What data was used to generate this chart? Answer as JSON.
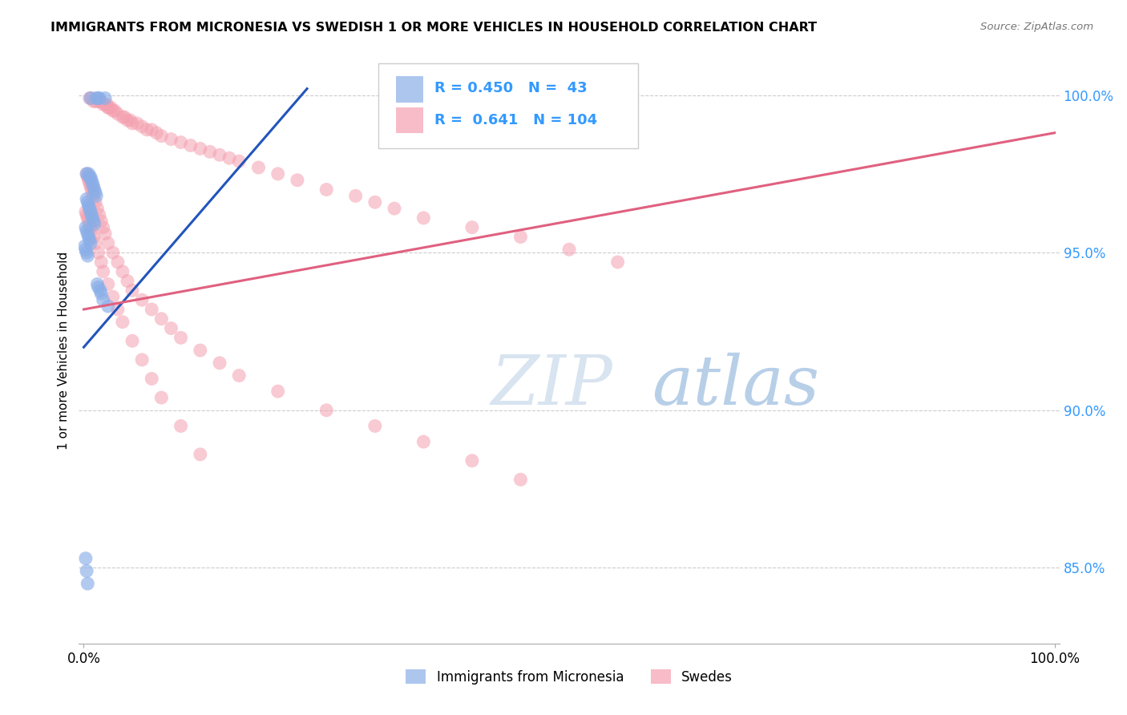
{
  "title": "IMMIGRANTS FROM MICRONESIA VS SWEDISH 1 OR MORE VEHICLES IN HOUSEHOLD CORRELATION CHART",
  "source": "Source: ZipAtlas.com",
  "ylabel": "1 or more Vehicles in Household",
  "ytick_labels": [
    "85.0%",
    "90.0%",
    "95.0%",
    "100.0%"
  ],
  "ytick_values": [
    0.85,
    0.9,
    0.95,
    1.0
  ],
  "xtick_labels": [
    "0.0%",
    "100.0%"
  ],
  "xtick_values": [
    0.0,
    1.0
  ],
  "xlim": [
    -0.005,
    1.005
  ],
  "ylim": [
    0.826,
    1.012
  ],
  "legend_label1": "Immigrants from Micronesia",
  "legend_label2": "Swedes",
  "R1": 0.45,
  "N1": 43,
  "R2": 0.641,
  "N2": 104,
  "color_blue": "#8aaee8",
  "color_pink": "#f4a0b0",
  "color_blue_line": "#2255bb",
  "color_pink_line": "#e06080",
  "color_text_blue": "#3399ff",
  "watermark_color": "#ccddf5",
  "background_color": "#FFFFFF",
  "blue_line_x": [
    0.0,
    0.23
  ],
  "blue_line_y": [
    0.92,
    1.002
  ],
  "pink_line_x": [
    0.0,
    1.0
  ],
  "pink_line_y": [
    0.932,
    0.988
  ],
  "blue_x": [
    0.007,
    0.013,
    0.015,
    0.016,
    0.022,
    0.003,
    0.005,
    0.006,
    0.007,
    0.008,
    0.009,
    0.01,
    0.011,
    0.012,
    0.013,
    0.003,
    0.004,
    0.005,
    0.006,
    0.007,
    0.008,
    0.009,
    0.01,
    0.011,
    0.002,
    0.003,
    0.004,
    0.005,
    0.006,
    0.007,
    0.001,
    0.002,
    0.003,
    0.004,
    0.014,
    0.015,
    0.017,
    0.018,
    0.02,
    0.025,
    0.002,
    0.003,
    0.004
  ],
  "blue_y": [
    0.999,
    0.999,
    0.999,
    0.999,
    0.999,
    0.975,
    0.975,
    0.974,
    0.974,
    0.973,
    0.972,
    0.971,
    0.97,
    0.969,
    0.968,
    0.967,
    0.966,
    0.965,
    0.964,
    0.963,
    0.962,
    0.961,
    0.96,
    0.959,
    0.958,
    0.957,
    0.956,
    0.955,
    0.954,
    0.953,
    0.952,
    0.951,
    0.95,
    0.949,
    0.94,
    0.939,
    0.938,
    0.937,
    0.935,
    0.933,
    0.853,
    0.849,
    0.845
  ],
  "pink_x": [
    0.006,
    0.008,
    0.01,
    0.012,
    0.015,
    0.016,
    0.017,
    0.018,
    0.02,
    0.022,
    0.024,
    0.025,
    0.026,
    0.028,
    0.03,
    0.032,
    0.035,
    0.04,
    0.042,
    0.045,
    0.048,
    0.05,
    0.055,
    0.06,
    0.065,
    0.07,
    0.075,
    0.08,
    0.09,
    0.1,
    0.11,
    0.12,
    0.13,
    0.14,
    0.15,
    0.16,
    0.18,
    0.2,
    0.22,
    0.25,
    0.28,
    0.3,
    0.32,
    0.35,
    0.4,
    0.45,
    0.5,
    0.55,
    0.003,
    0.004,
    0.005,
    0.006,
    0.007,
    0.008,
    0.009,
    0.01,
    0.012,
    0.014,
    0.016,
    0.018,
    0.02,
    0.022,
    0.025,
    0.03,
    0.035,
    0.04,
    0.045,
    0.05,
    0.06,
    0.07,
    0.08,
    0.09,
    0.1,
    0.12,
    0.14,
    0.16,
    0.2,
    0.25,
    0.3,
    0.35,
    0.4,
    0.45,
    0.002,
    0.003,
    0.004,
    0.005,
    0.006,
    0.007,
    0.008,
    0.01,
    0.012,
    0.015,
    0.018,
    0.02,
    0.025,
    0.03,
    0.035,
    0.04,
    0.05,
    0.06,
    0.07,
    0.08,
    0.1,
    0.12
  ],
  "pink_y": [
    0.999,
    0.999,
    0.998,
    0.998,
    0.998,
    0.998,
    0.998,
    0.998,
    0.997,
    0.997,
    0.997,
    0.996,
    0.996,
    0.996,
    0.995,
    0.995,
    0.994,
    0.993,
    0.993,
    0.992,
    0.992,
    0.991,
    0.991,
    0.99,
    0.989,
    0.989,
    0.988,
    0.987,
    0.986,
    0.985,
    0.984,
    0.983,
    0.982,
    0.981,
    0.98,
    0.979,
    0.977,
    0.975,
    0.973,
    0.97,
    0.968,
    0.966,
    0.964,
    0.961,
    0.958,
    0.955,
    0.951,
    0.947,
    0.975,
    0.974,
    0.973,
    0.972,
    0.971,
    0.97,
    0.969,
    0.968,
    0.966,
    0.964,
    0.962,
    0.96,
    0.958,
    0.956,
    0.953,
    0.95,
    0.947,
    0.944,
    0.941,
    0.938,
    0.935,
    0.932,
    0.929,
    0.926,
    0.923,
    0.919,
    0.915,
    0.911,
    0.906,
    0.9,
    0.895,
    0.89,
    0.884,
    0.878,
    0.963,
    0.962,
    0.961,
    0.96,
    0.959,
    0.958,
    0.957,
    0.955,
    0.953,
    0.95,
    0.947,
    0.944,
    0.94,
    0.936,
    0.932,
    0.928,
    0.922,
    0.916,
    0.91,
    0.904,
    0.895,
    0.886
  ]
}
